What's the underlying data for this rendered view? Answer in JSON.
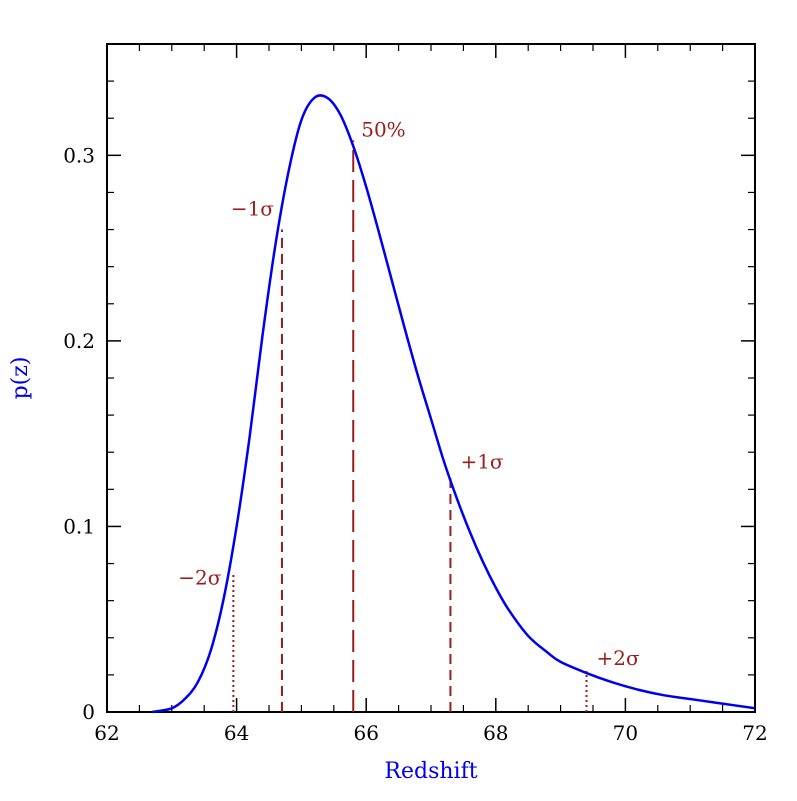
{
  "chart_data": {
    "type": "line",
    "title": "",
    "xlabel": "Redshift",
    "ylabel": "p(z)",
    "xlim": [
      62,
      72
    ],
    "ylim": [
      0,
      0.36
    ],
    "x_ticks": [
      62,
      64,
      66,
      68,
      70,
      72
    ],
    "x_tick_labels": [
      "62",
      "64",
      "66",
      "68",
      "70",
      "72"
    ],
    "y_ticks": [
      0,
      0.1,
      0.2,
      0.3
    ],
    "y_tick_labels": [
      "0",
      "0.1",
      "0.2",
      "0.3"
    ],
    "grid": false,
    "series": [
      {
        "x": [
          62.7,
          63.0,
          63.2,
          63.4,
          63.6,
          63.8,
          64.0,
          64.2,
          64.4,
          64.6,
          64.8,
          65.0,
          65.2,
          65.4,
          65.6,
          65.8,
          66.0,
          66.2,
          66.4,
          66.6,
          66.8,
          67.0,
          67.2,
          67.4,
          67.6,
          67.8,
          68.0,
          68.2,
          68.5,
          68.8,
          69.0,
          69.4,
          69.8,
          70.2,
          70.6,
          71.0,
          71.4,
          72.0
        ],
        "y": [
          0.0,
          0.002,
          0.007,
          0.016,
          0.033,
          0.061,
          0.1,
          0.148,
          0.203,
          0.252,
          0.291,
          0.319,
          0.331,
          0.331,
          0.322,
          0.305,
          0.283,
          0.258,
          0.232,
          0.206,
          0.181,
          0.158,
          0.135,
          0.115,
          0.097,
          0.081,
          0.067,
          0.055,
          0.041,
          0.032,
          0.027,
          0.021,
          0.016,
          0.012,
          0.009,
          0.007,
          0.005,
          0.002
        ]
      }
    ],
    "markers": [
      {
        "label": "−2σ",
        "x": 63.95,
        "y": 0.074,
        "style": "dotted"
      },
      {
        "label": "−1σ",
        "x": 64.7,
        "y": 0.26,
        "style": "dashed"
      },
      {
        "label": "50%",
        "x": 65.8,
        "y": 0.308,
        "style": "longdash"
      },
      {
        "label": "+1σ",
        "x": 67.3,
        "y": 0.128,
        "style": "dashed"
      },
      {
        "label": "+2σ",
        "x": 69.4,
        "y": 0.022,
        "style": "dotted"
      }
    ],
    "colors": {
      "curve": "#0000ee",
      "markers": "#9b1c1c",
      "xlabel": "#0000ee",
      "ylabel": "#0000ee",
      "axes": "#000000"
    }
  }
}
